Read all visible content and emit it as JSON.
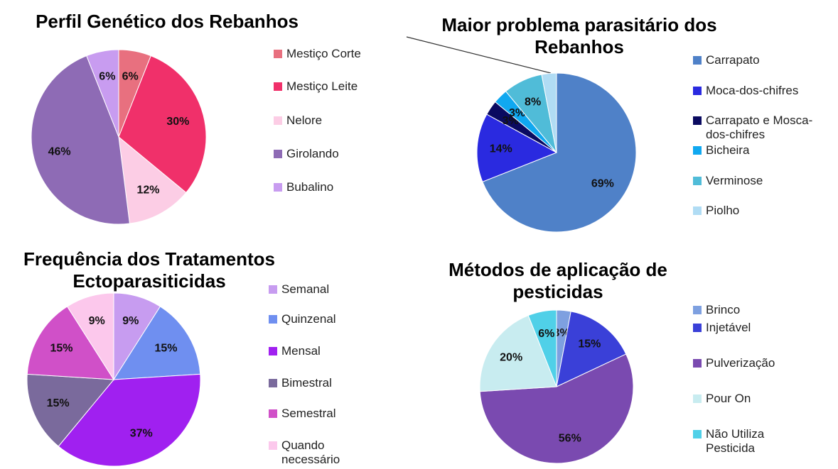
{
  "chart_data": [
    {
      "type": "pie",
      "title": "Perfil Genético dos Rebanhos",
      "categories": [
        "Mestiço Corte",
        "Mestiço Leite",
        "Nelore",
        "Girolando",
        "Bubalino"
      ],
      "values": [
        6,
        30,
        12,
        46,
        6
      ],
      "value_labels": [
        "6%",
        "30%",
        "12%",
        "46%",
        "6%"
      ],
      "colors": [
        "#e8707f",
        "#f0306a",
        "#fccde5",
        "#8e6bb5",
        "#c89cf0"
      ]
    },
    {
      "type": "pie",
      "title": "Maior problema parasitário dos Rebanhos",
      "categories": [
        "Carrapato",
        "Moca-dos-chifres",
        "Carrapato e Mosca-dos-chifres",
        "Bicheira",
        "Verminose",
        "Piolho"
      ],
      "values": [
        69,
        14,
        3,
        3,
        8,
        3
      ],
      "value_labels": [
        "69%",
        "14%",
        "3%",
        "3%",
        "8%",
        null
      ],
      "colors": [
        "#4f81c8",
        "#2a2ae0",
        "#0a0a60",
        "#10a8f0",
        "#50bcd8",
        "#b0dcf4"
      ]
    },
    {
      "type": "pie",
      "title": "Frequência dos Tratamentos Ectoparasiticidas",
      "categories": [
        "Semanal",
        "Quinzenal",
        "Mensal",
        "Bimestral",
        "Semestral",
        "Quando necessário"
      ],
      "values": [
        9,
        15,
        37,
        15,
        15,
        9
      ],
      "value_labels": [
        "9%",
        "15%",
        "37%",
        "15%",
        "15%",
        "9%"
      ],
      "colors": [
        "#c79cf0",
        "#6f8ff0",
        "#a020f0",
        "#7a6a9c",
        "#d050c8",
        "#fcc8ec"
      ]
    },
    {
      "type": "pie",
      "title": "Métodos de aplicação de pesticidas",
      "categories": [
        "Brinco",
        "Injetável",
        "Pulverização",
        "Pour On",
        "Não Utiliza Pesticida"
      ],
      "values": [
        3,
        15,
        56,
        20,
        6
      ],
      "value_labels": [
        "3%",
        "15%",
        "56%",
        "20%",
        "6%"
      ],
      "colors": [
        "#7ea0e0",
        "#3a40d8",
        "#7a4ab0",
        "#c8ecf0",
        "#50d0e8"
      ]
    }
  ]
}
